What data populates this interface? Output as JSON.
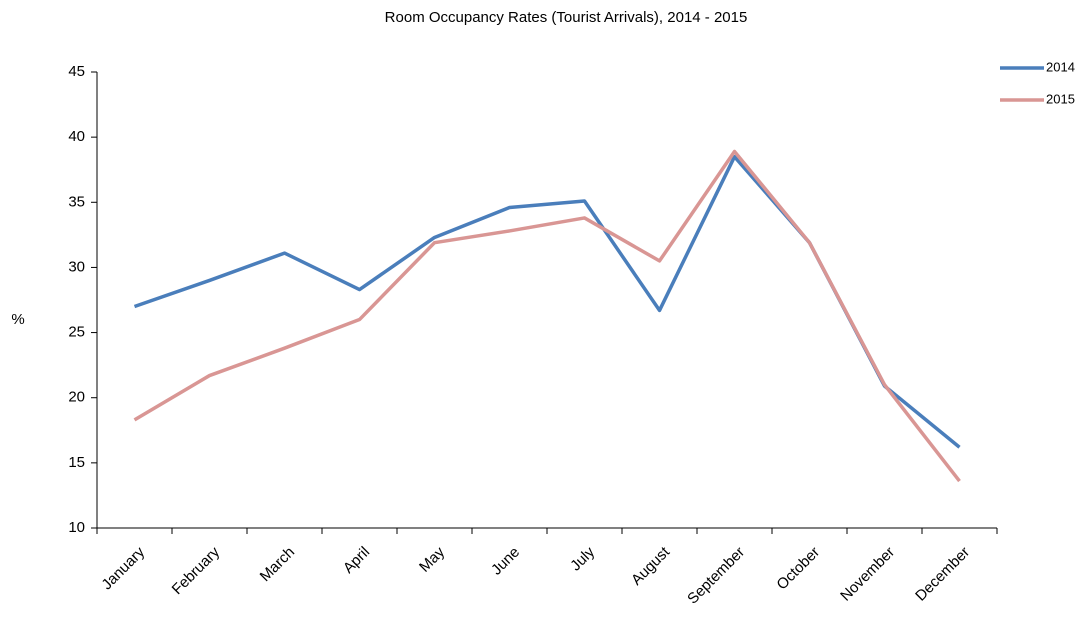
{
  "chart_data": {
    "type": "line",
    "title": "Room Occupancy Rates (Tourist Arrivals), 2014 - 2015",
    "y_label": "%",
    "categories": [
      "January",
      "February",
      "March",
      "April",
      "May",
      "June",
      "July",
      "August",
      "September",
      "October",
      "November",
      "December"
    ],
    "series": [
      {
        "name": "2014",
        "color": "#4a7ebb",
        "values": [
          27.0,
          29.0,
          31.1,
          28.3,
          32.3,
          34.6,
          35.1,
          26.7,
          38.5,
          31.9,
          20.9,
          16.2
        ]
      },
      {
        "name": "2015",
        "color": "#d99694",
        "values": [
          18.3,
          21.7,
          23.8,
          26.0,
          31.9,
          32.8,
          33.8,
          30.5,
          38.9,
          31.9,
          21.0,
          13.6
        ]
      }
    ],
    "ylim": [
      10,
      45
    ],
    "yticks": [
      10,
      15,
      20,
      25,
      30,
      35,
      40,
      45
    ],
    "grid": false,
    "legend": "top-right"
  }
}
